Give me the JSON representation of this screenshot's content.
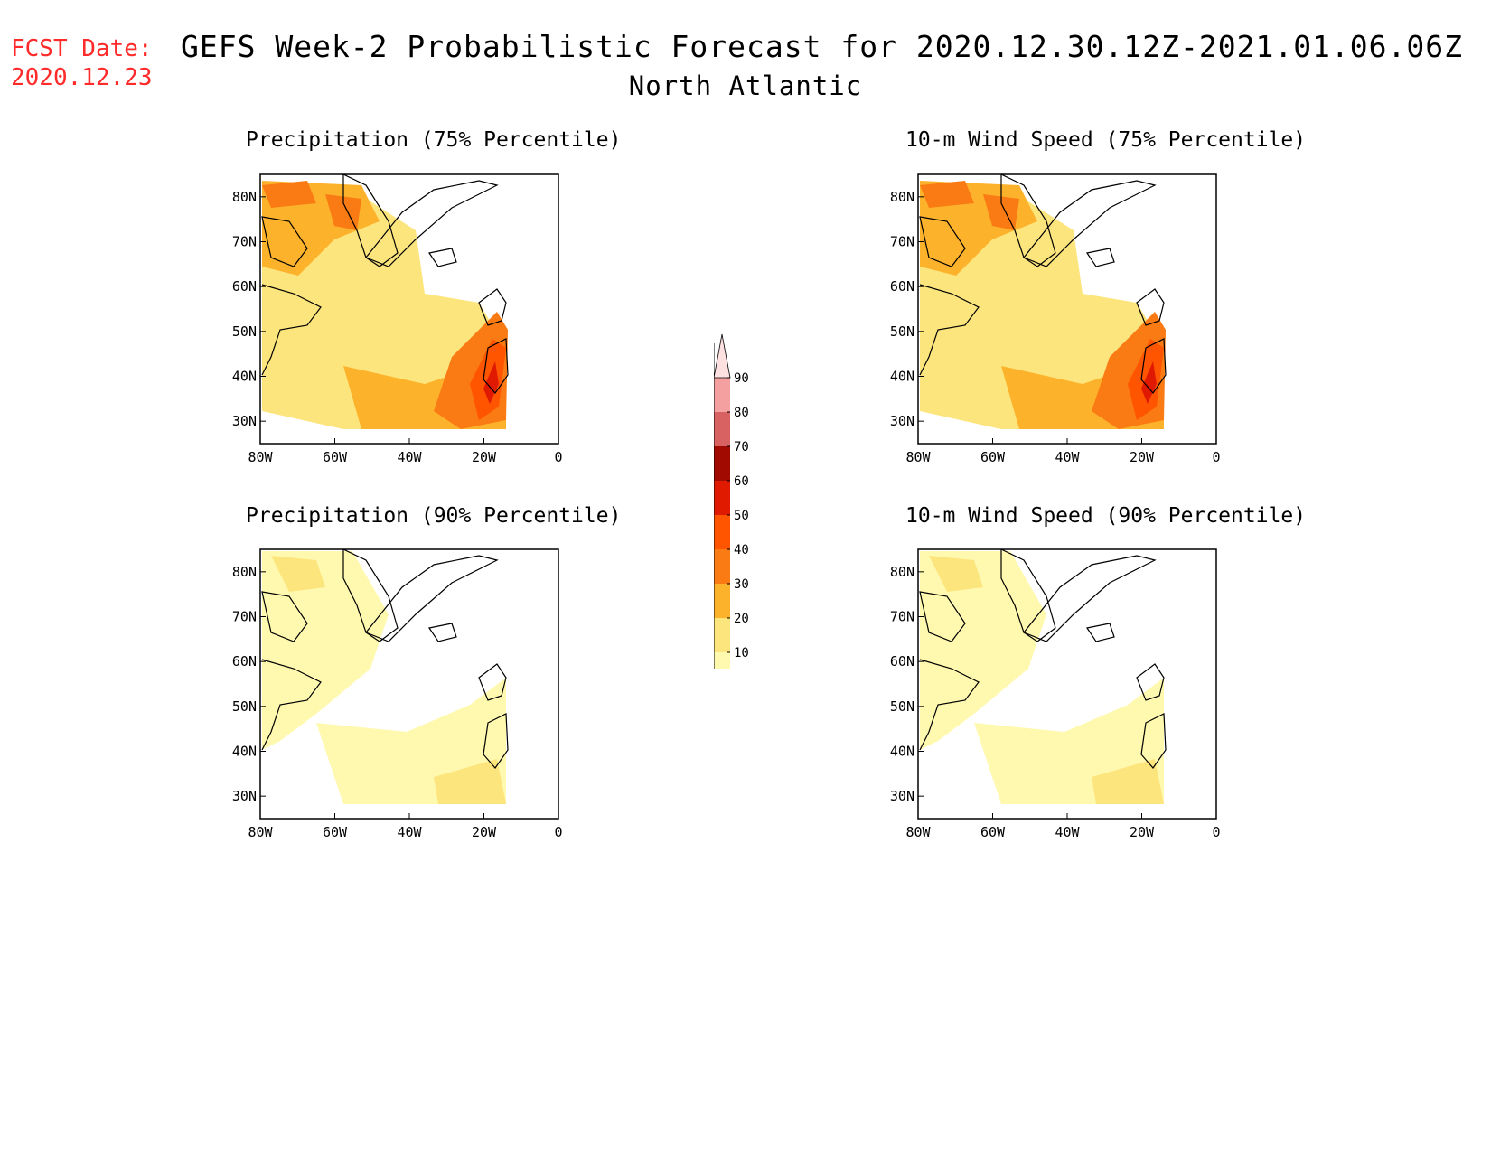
{
  "header": {
    "fcst_label": "FCST Date:",
    "fcst_date": "2020.12.23",
    "title": "GEFS Week-2 Probabilistic Forecast for 2020.12.30.12Z-2021.01.06.06Z",
    "subtitle": "North Atlantic"
  },
  "axes": {
    "lat_labels": [
      "80N",
      "70N",
      "60N",
      "50N",
      "40N",
      "30N"
    ],
    "lon_labels": [
      "80W",
      "60W",
      "40W",
      "20W",
      "0"
    ]
  },
  "panels": [
    {
      "id": "precip75",
      "title": "Precipitation (75% Percentile)",
      "intensity": "moderate"
    },
    {
      "id": "wind75",
      "title": "10-m Wind Speed (75% Percentile)",
      "intensity": "moderate"
    },
    {
      "id": "precip90",
      "title": "Precipitation (90% Percentile)",
      "intensity": "low"
    },
    {
      "id": "wind90",
      "title": "10-m Wind Speed (90% Percentile)",
      "intensity": "low"
    }
  ],
  "colorbar": {
    "levels": [
      "10",
      "20",
      "30",
      "40",
      "50",
      "60",
      "70",
      "80",
      "90"
    ],
    "colors": [
      "#fff9b0",
      "#fde57e",
      "#fdb22c",
      "#fa7a13",
      "#ff5500",
      "#e01a00",
      "#a00a00",
      "#d86262",
      "#f4a0a0",
      "#fde0e0"
    ]
  }
}
